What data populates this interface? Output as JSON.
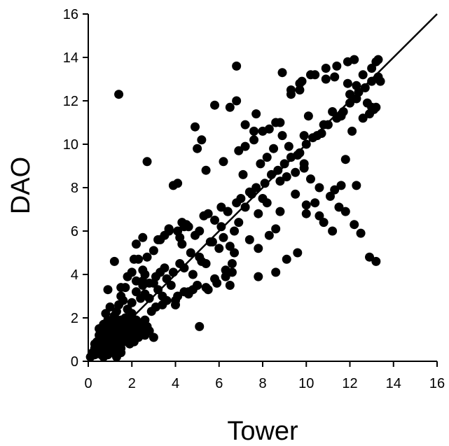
{
  "chart_data": {
    "type": "scatter",
    "title": "",
    "xlabel": "Tower",
    "ylabel": "DAO",
    "xlim": [
      0,
      16
    ],
    "ylim": [
      0,
      16
    ],
    "xticks": [
      0,
      2,
      4,
      6,
      8,
      10,
      12,
      14,
      16
    ],
    "yticks": [
      0,
      2,
      4,
      6,
      8,
      10,
      12,
      14,
      16
    ],
    "grid": false,
    "legend": "none",
    "marker_color": "#000000",
    "reference_line": {
      "label": "",
      "from": [
        0,
        0
      ],
      "to": [
        16,
        16
      ]
    },
    "series": [
      {
        "x": [
          0.1,
          0.2,
          0.3,
          0.3,
          0.4,
          0.4,
          0.5,
          0.5,
          0.5,
          0.6,
          0.6,
          0.6,
          0.7,
          0.7,
          0.7,
          0.7,
          0.8,
          0.8,
          0.8,
          0.8,
          0.9,
          0.9,
          0.9,
          0.9,
          1.0,
          1.0,
          1.0,
          1.0,
          1.0,
          1.1,
          1.1,
          1.1,
          1.2,
          1.2,
          1.2,
          1.2,
          1.3,
          1.3,
          1.3,
          1.4,
          1.4,
          1.4,
          1.5,
          1.5,
          1.5,
          1.6,
          1.6,
          1.6,
          1.7,
          1.7,
          1.7,
          1.8,
          1.8,
          1.9,
          1.9,
          2.0,
          2.0,
          2.0,
          2.1,
          2.1,
          2.2,
          2.2,
          2.3,
          2.3,
          2.4,
          2.5,
          2.5,
          2.6,
          2.7,
          2.8,
          0.6,
          0.8,
          1.0,
          1.1,
          1.3,
          1.4,
          1.6,
          1.8,
          1.9,
          2.1,
          0.3,
          0.5,
          0.7,
          0.9,
          1.2,
          1.5,
          0.7,
          1.0,
          1.3,
          0.4,
          0.8,
          0.9,
          1.0,
          1.2,
          1.3,
          1.4,
          1.5,
          1.6,
          1.8,
          2.0,
          2.2,
          2.4,
          2.5,
          2.6,
          2.8,
          3.0,
          3.2,
          3.4,
          1.5,
          1.8,
          2.2,
          2.5,
          2.8,
          3.1,
          3.3,
          3.6,
          3.8,
          4.0,
          4.2,
          4.4,
          4.6,
          4.8,
          5.0,
          5.2,
          1.2,
          1.7,
          2.0,
          2.3,
          2.7,
          3.0,
          3.5,
          3.9,
          4.3,
          4.7,
          5.1,
          5.4,
          5.7,
          6.0,
          6.2,
          6.5,
          6.7,
          0.9,
          2.6,
          3.2,
          3.7,
          4.1,
          4.5,
          4.9,
          5.3,
          5.6,
          6.1,
          6.4,
          6.9,
          7.2,
          7.5,
          7.8,
          8.0,
          8.2,
          1.5,
          1.8,
          2.0,
          2.4,
          2.6,
          2.9,
          3.1,
          3.4,
          3.6,
          4.0,
          4.1,
          4.4,
          4.6,
          4.8,
          5.0,
          5.5,
          5.9,
          6.3,
          6.6,
          3.3,
          3.5,
          3.7,
          4.2,
          4.6,
          5.1,
          5.5,
          5.8,
          6.1,
          6.4,
          6.8,
          7.0,
          7.4,
          7.7,
          8.1,
          8.4,
          8.7,
          9.0,
          9.3,
          9.7,
          10.0,
          10.3,
          10.7,
          11.0,
          11.4,
          11.7,
          12.0,
          12.3,
          12.7,
          13.0,
          13.3,
          2.5,
          3.0,
          4.3,
          4.9,
          5.2,
          5.8,
          6.5,
          6.8,
          7.2,
          7.7,
          8.0,
          8.6,
          8.9,
          9.2,
          9.6,
          9.9,
          10.2,
          10.6,
          11.1,
          11.5,
          11.8,
          12.2,
          12.5,
          12.9,
          13.2,
          4.4,
          5.4,
          6.2,
          6.9,
          7.6,
          8.3,
          8.8,
          9.3,
          9.8,
          10.4,
          10.9,
          11.3,
          11.9,
          12.4,
          12.8,
          13.1,
          13.4,
          7.1,
          7.9,
          8.5,
          9.1,
          9.5,
          9.9,
          10.5,
          10.8,
          11.2,
          11.6,
          12.1,
          12.6,
          13.0,
          6.7,
          7.4,
          7.8,
          8.8,
          9.5,
          10.0,
          10.6,
          11.3,
          11.6,
          12.0,
          12.3,
          6.8,
          7.2,
          7.6,
          8.2,
          8.9,
          9.3,
          9.7,
          10.2,
          10.9,
          11.4,
          11.9,
          12.2,
          12.6,
          13.0,
          13.3,
          1.4,
          5.4,
          5.8,
          6.3,
          6.6,
          7.8,
          8.6,
          9.1,
          9.6,
          10.0,
          10.4,
          10.8,
          11.2,
          11.8,
          12.3,
          12.9,
          13.2,
          8.8,
          9.9,
          12.3,
          13.2,
          8.3,
          9.7,
          10.1,
          8.6,
          3.9,
          4.1,
          2.7,
          3.7,
          2.1,
          2.5,
          2.2,
          5.0,
          6.5,
          5.1
        ],
        "y": [
          0.2,
          0.4,
          0.3,
          0.6,
          0.5,
          0.9,
          0.4,
          0.7,
          1.2,
          0.3,
          0.8,
          1.1,
          0.5,
          0.9,
          1.3,
          0.2,
          0.6,
          1.0,
          0.4,
          1.4,
          0.7,
          1.2,
          0.3,
          1.6,
          0.5,
          0.9,
          1.3,
          0.8,
          1.1,
          0.6,
          1.5,
          1.0,
          0.7,
          1.2,
          0.4,
          1.8,
          0.9,
          1.4,
          1.1,
          0.8,
          1.6,
          1.3,
          1.0,
          1.9,
          0.6,
          1.2,
          1.7,
          0.9,
          1.4,
          1.1,
          2.0,
          1.3,
          1.6,
          0.9,
          1.8,
          1.2,
          1.5,
          2.2,
          1.0,
          1.7,
          1.4,
          1.9,
          1.1,
          1.6,
          1.3,
          1.5,
          1.8,
          1.2,
          1.6,
          1.4,
          0.6,
          0.3,
          0.5,
          0.8,
          0.2,
          0.7,
          1.0,
          1.1,
          0.8,
          0.9,
          0.8,
          1.5,
          1.7,
          0.5,
          0.6,
          0.4,
          0.5,
          0.4,
          0.7,
          0.6,
          2.2,
          1.9,
          2.5,
          2.1,
          2.3,
          2.6,
          3.0,
          2.8,
          2.4,
          2.7,
          3.2,
          2.9,
          3.5,
          3.1,
          2.9,
          3.6,
          3.3,
          3.0,
          3.4,
          3.9,
          3.7,
          4.2,
          3.6,
          3.9,
          4.1,
          3.8,
          3.5,
          2.6,
          4.5,
          4.3,
          3.2,
          4.0,
          3.5,
          4.6,
          4.6,
          3.4,
          4.1,
          4.7,
          4.8,
          5.1,
          4.3,
          4.1,
          5.4,
          5.0,
          4.8,
          4.5,
          5.5,
          5.2,
          5.7,
          5.3,
          6.0,
          3.3,
          4.0,
          5.6,
          6.1,
          6.0,
          6.3,
          5.8,
          6.7,
          5.5,
          6.2,
          6.9,
          6.4,
          7.1,
          7.7,
          6.8,
          7.5,
          7.3,
          1.5,
          1.2,
          2.0,
          1.7,
          1.9,
          2.3,
          2.5,
          2.6,
          2.8,
          2.8,
          3.0,
          3.2,
          3.1,
          3.3,
          3.5,
          3.3,
          3.6,
          3.9,
          4.1,
          5.6,
          5.8,
          6.1,
          5.7,
          6.2,
          6.0,
          6.8,
          6.5,
          7.1,
          6.9,
          7.3,
          7.5,
          7.8,
          8.0,
          8.2,
          8.6,
          8.8,
          9.1,
          9.4,
          9.6,
          10.0,
          10.3,
          10.5,
          10.9,
          11.2,
          11.5,
          11.9,
          12.1,
          12.6,
          12.9,
          13.1,
          3.7,
          1.1,
          6.4,
          10.8,
          10.2,
          11.8,
          11.7,
          12.0,
          10.9,
          11.4,
          10.6,
          11.0,
          10.4,
          9.9,
          9.5,
          8.9,
          8.4,
          8.0,
          7.6,
          7.1,
          6.9,
          6.3,
          5.9,
          4.8,
          4.6,
          6.2,
          8.8,
          9.2,
          9.7,
          10.2,
          10.7,
          11.0,
          12.5,
          12.9,
          13.2,
          13.5,
          13.1,
          12.8,
          12.4,
          11.9,
          11.6,
          12.9,
          8.6,
          9.1,
          9.8,
          8.5,
          8.7,
          9.1,
          10.4,
          10.9,
          11.5,
          11.3,
          10.6,
          11.2,
          11.7,
          5.0,
          5.6,
          5.2,
          6.9,
          7.7,
          7.2,
          6.7,
          7.9,
          8.1,
          12.3,
          12.1,
          13.6,
          9.9,
          10.6,
          9.4,
          13.3,
          12.3,
          12.8,
          13.2,
          13.0,
          13.6,
          13.8,
          13.9,
          13.2,
          13.5,
          13.9,
          12.3,
          3.4,
          3.8,
          4.2,
          4.5,
          3.9,
          4.1,
          4.7,
          5.0,
          6.8,
          7.3,
          6.4,
          6.0,
          9.3,
          8.1,
          11.4,
          11.7,
          8.3,
          10.4,
          12.7,
          13.8,
          5.8,
          12.5,
          11.3,
          6.1,
          8.1,
          8.2,
          9.2,
          6.0,
          4.7,
          5.7,
          5.4,
          9.8,
          3.5,
          1.6
        ]
      }
    ]
  }
}
